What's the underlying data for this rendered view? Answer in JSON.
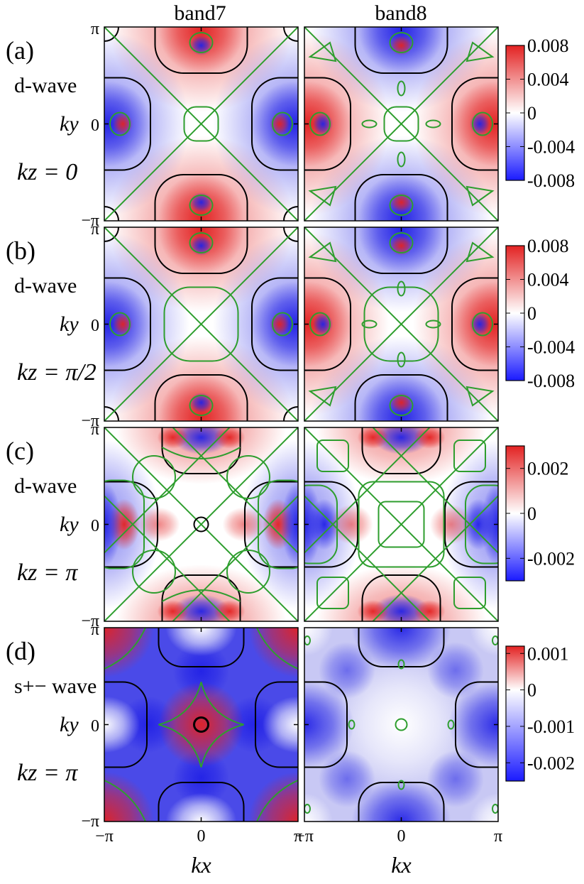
{
  "columns": [
    "band7",
    "band8"
  ],
  "axes": {
    "xlabel": "kx",
    "ylabel": "ky",
    "x_ticks": [
      "−π",
      "0",
      "π"
    ],
    "y_ticks": [
      "π",
      "0",
      "−π"
    ]
  },
  "chart_data": [
    {
      "type": "heatmap",
      "panel_label": "(a)",
      "pairing": "d-wave",
      "kz": "kz = 0",
      "kz_value": "0",
      "xlim": [
        -3.1416,
        3.1416
      ],
      "ylim": [
        -3.1416,
        3.1416
      ],
      "colorbar": {
        "ticks": [
          "0.008",
          "0.004",
          "0",
          "-0.004",
          "-0.008"
        ],
        "range": [
          -0.008,
          0.008
        ]
      },
      "series": [
        {
          "column": "band7",
          "pattern": "d-wave, band7, kz=0"
        },
        {
          "column": "band8",
          "pattern": "d-wave, band8, kz=0"
        }
      ],
      "colors": {
        "positive": "#e32222",
        "zero": "#ffffff",
        "negative": "#2222e6",
        "fermi_surface": "#000000",
        "node_contour": "#2e9e2e"
      }
    },
    {
      "type": "heatmap",
      "panel_label": "(b)",
      "pairing": "d-wave",
      "kz": "kz = π/2",
      "kz_value": "π/2",
      "xlim": [
        -3.1416,
        3.1416
      ],
      "ylim": [
        -3.1416,
        3.1416
      ],
      "colorbar": {
        "ticks": [
          "0.008",
          "0.004",
          "0",
          "-0.004",
          "-0.008"
        ],
        "range": [
          -0.008,
          0.008
        ]
      },
      "series": [
        {
          "column": "band7",
          "pattern": "d-wave, band7, kz=π/2"
        },
        {
          "column": "band8",
          "pattern": "d-wave, band8, kz=π/2"
        }
      ],
      "colors": {
        "positive": "#e32222",
        "zero": "#ffffff",
        "negative": "#2222e6",
        "fermi_surface": "#000000",
        "node_contour": "#2e9e2e"
      }
    },
    {
      "type": "heatmap",
      "panel_label": "(c)",
      "pairing": "d-wave",
      "kz": "kz = π",
      "kz_value": "π",
      "xlim": [
        -3.1416,
        3.1416
      ],
      "ylim": [
        -3.1416,
        3.1416
      ],
      "colorbar": {
        "ticks": [
          "0.002",
          "0",
          "-0.002"
        ],
        "range": [
          -0.003,
          0.003
        ]
      },
      "series": [
        {
          "column": "band7",
          "pattern": "d-wave, band7, kz=π"
        },
        {
          "column": "band8",
          "pattern": "d-wave, band8, kz=π"
        }
      ],
      "colors": {
        "positive": "#e32222",
        "zero": "#ffffff",
        "negative": "#2222e6",
        "fermi_surface": "#000000",
        "node_contour": "#2e9e2e"
      }
    },
    {
      "type": "heatmap",
      "panel_label": "(d)",
      "pairing": "s+− wave",
      "kz": "kz = π",
      "kz_value": "π",
      "xlim": [
        -3.1416,
        3.1416
      ],
      "ylim": [
        -3.1416,
        3.1416
      ],
      "colorbar": {
        "ticks": [
          "0.001",
          "0",
          "-0.001",
          "-0.002"
        ],
        "range": [
          -0.0025,
          0.0012
        ]
      },
      "series": [
        {
          "column": "band7",
          "pattern": "s+- wave, band7, kz=π"
        },
        {
          "column": "band8",
          "pattern": "s+- wave, band8, kz=π"
        }
      ],
      "colors": {
        "positive": "#e32222",
        "zero": "#ffffff",
        "negative": "#2222e6",
        "fermi_surface": "#000000",
        "node_contour": "#2e9e2e"
      }
    }
  ]
}
